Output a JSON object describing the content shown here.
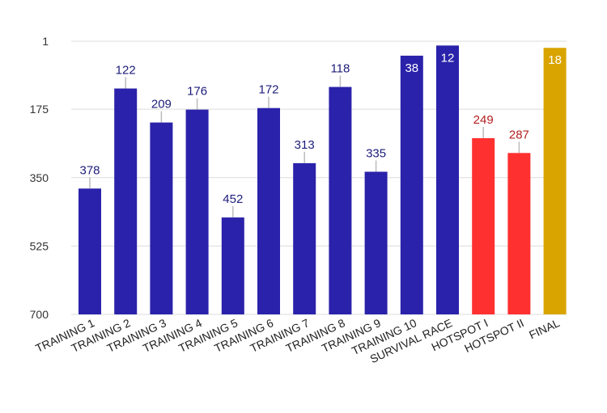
{
  "chart_data": {
    "type": "bar",
    "axis": "reversed",
    "ylim": [
      1,
      700
    ],
    "yticks": [
      1,
      175,
      350,
      525,
      700
    ],
    "grid": true,
    "categories": [
      "TRAINING 1",
      "TRAINING 2",
      "TRAINING 3",
      "TRAINING 4",
      "TRAINING 5",
      "TRAINING 6",
      "TRAINING 7",
      "TRAINING 8",
      "TRAINING 9",
      "TRAINING 10",
      "SURVIVAL RACE",
      "HOTSPOT I",
      "HOTSPOT II",
      "FINAL"
    ],
    "values": [
      378,
      122,
      209,
      176,
      452,
      172,
      313,
      118,
      335,
      38,
      12,
      249,
      287,
      18
    ],
    "colors": [
      "#2a22aa",
      "#2a22aa",
      "#2a22aa",
      "#2a22aa",
      "#2a22aa",
      "#2a22aa",
      "#2a22aa",
      "#2a22aa",
      "#2a22aa",
      "#2a22aa",
      "#2a22aa",
      "#ff3030",
      "#ff3030",
      "#d9a400"
    ],
    "label_colors": [
      "#1c1c7a",
      "#1c1c7a",
      "#1c1c7a",
      "#1c1c7a",
      "#1c1c7a",
      "#1c1c7a",
      "#1c1c7a",
      "#1c1c7a",
      "#1c1c7a",
      "#ffffff",
      "#ffffff",
      "#b52020",
      "#b52020",
      "#ffffff"
    ],
    "label_inside": [
      false,
      false,
      false,
      false,
      false,
      false,
      false,
      false,
      false,
      true,
      true,
      false,
      false,
      true
    ],
    "gridline_color": "#dcdcdc",
    "xlabel": "",
    "ylabel": "",
    "title": ""
  }
}
